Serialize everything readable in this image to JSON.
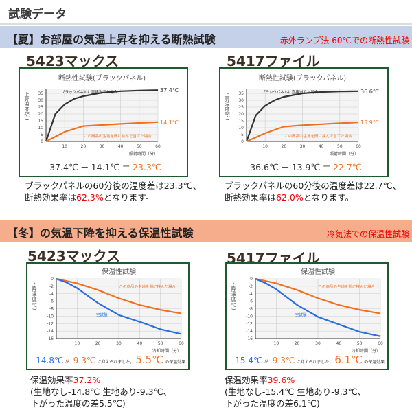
{
  "header": {
    "title": "試験データ"
  },
  "summer": {
    "band_title": "【夏】お部屋の気温上昇を抑える断熱試験",
    "band_note": "赤外ランプ法 60℃での断熱性試験",
    "band_color": "#c5d1e8",
    "products": [
      {
        "name": "5423マックス",
        "formula": {
          "a": "37.4℃",
          "op": "－",
          "b": "14.1℃",
          "eq": "＝",
          "r": "23.3℃"
        },
        "desc_1": "ブラックパネルの60分後の温度差は23.3℃、",
        "desc_2a": "断熱効果率は",
        "desc_2b": "62.3%",
        "desc_2c": "となります。"
      },
      {
        "name": "5417ファイル",
        "formula": {
          "a": "36.6℃",
          "op": "－",
          "b": "13.9℃",
          "eq": "＝",
          "r": "22.7℃"
        },
        "desc_1": "ブラックパネルの60分後の温度差は22.7℃、",
        "desc_2a": "断熱効果率は",
        "desc_2b": "62.0%",
        "desc_2c": "となります。"
      }
    ]
  },
  "winter": {
    "band_title": "【冬】の気温下降を抑える保温性試験",
    "band_note": "冷気法での保温性試験",
    "band_color": "#f6ad8c",
    "products": [
      {
        "name": "5423マックス",
        "formula": {
          "a": "-14.8℃",
          "ga": "が",
          "b": "-9.3℃",
          "mid": "に抑えられました。",
          "r": "5.5℃",
          "tail": "の保温効果"
        },
        "desc_1a": "保温効果率",
        "desc_1b": "37.2%",
        "desc_2": "(生地なし-14.8℃ 生地あり-9.3℃、",
        "desc_3": "下がった温度の差5.5℃)"
      },
      {
        "name": "5417ファイル",
        "formula": {
          "a": "-15.4℃",
          "ga": "が",
          "b": "-9.3℃",
          "mid": "に抑えられました。",
          "r": "6.1℃",
          "tail": "の保温効果"
        },
        "desc_1a": "保温効果率",
        "desc_1b": "39.6%",
        "desc_2": "(生地なし-15.4℃ 生地あり-9.3℃、",
        "desc_3": "下がった温度の差6.1℃)"
      }
    ]
  },
  "chart_data": [
    {
      "type": "line",
      "title": "断熱性試験(ブラックパネル)",
      "ylabel": "上昇温度(℃)",
      "xlabel": "照射時間（分）",
      "x_ticks": [
        10,
        20,
        30,
        40,
        50,
        60
      ],
      "y_ticks": [
        0,
        5,
        10,
        15,
        20,
        25,
        30,
        35
      ],
      "xlim": [
        0,
        60
      ],
      "ylim": [
        0,
        38
      ],
      "grid": true,
      "series": [
        {
          "name": "ブラックパネルに直接当てた場合",
          "color": "#333333",
          "end_label": "37.4℃",
          "x": [
            0,
            5,
            10,
            15,
            20,
            30,
            40,
            50,
            60
          ],
          "y": [
            0,
            20,
            27,
            31,
            33,
            35.5,
            36.6,
            37.1,
            37.4
          ]
        },
        {
          "name": "この商品の生地を間に挟んで当てた場合",
          "color": "#f07020",
          "end_label": "14.1℃",
          "x": [
            0,
            10,
            20,
            30,
            40,
            50,
            60
          ],
          "y": [
            0,
            7,
            11.2,
            12,
            12.8,
            13.5,
            14.1
          ]
        }
      ]
    },
    {
      "type": "line",
      "title": "断熱性試験(ブラックパネル)",
      "ylabel": "上昇温度(℃)",
      "xlabel": "照射時間（分）",
      "x_ticks": [
        10,
        20,
        30,
        40,
        50,
        60
      ],
      "y_ticks": [
        0,
        5,
        10,
        15,
        20,
        25,
        30,
        35
      ],
      "xlim": [
        0,
        60
      ],
      "ylim": [
        0,
        38
      ],
      "grid": true,
      "series": [
        {
          "name": "ブラックパネルに直接当てた場合",
          "color": "#333333",
          "end_label": "36.6℃",
          "x": [
            0,
            5,
            10,
            15,
            20,
            30,
            40,
            50,
            60
          ],
          "y": [
            0,
            19,
            26,
            30,
            32.5,
            35,
            36,
            36.4,
            36.6
          ]
        },
        {
          "name": "この商品の生地を間に挟んで当てた場合",
          "color": "#f07020",
          "end_label": "13.9℃",
          "x": [
            0,
            10,
            20,
            30,
            40,
            50,
            60
          ],
          "y": [
            0,
            6,
            10.8,
            11.8,
            12.6,
            13.3,
            13.9
          ]
        }
      ]
    },
    {
      "type": "line",
      "title": "保温性試験",
      "ylabel": "下降温度(℃)",
      "xlabel": "冷却時間（分）",
      "x_ticks": [
        10,
        20,
        30,
        40,
        50,
        60
      ],
      "y_ticks": [
        0,
        -2,
        -4,
        -6,
        -8,
        -10,
        -12,
        -14,
        -16
      ],
      "xlim": [
        0,
        60
      ],
      "ylim": [
        -16,
        0
      ],
      "grid": true,
      "series": [
        {
          "name": "この商品の生地を間に挟んだ場合",
          "color": "#f07020",
          "x": [
            0,
            10,
            20,
            30,
            40,
            50,
            60
          ],
          "y": [
            0,
            -1.2,
            -3,
            -5.2,
            -7,
            -8.3,
            -9.3
          ]
        },
        {
          "name": "空試験",
          "color": "#2a6ee0",
          "x": [
            0,
            5,
            10,
            20,
            30,
            40,
            50,
            60
          ],
          "y": [
            0,
            -1,
            -2.5,
            -6.5,
            -9.7,
            -11.5,
            -13.5,
            -14.8
          ]
        }
      ]
    },
    {
      "type": "line",
      "title": "保温性試験",
      "ylabel": "下降温度(℃)",
      "xlabel": "冷却時間（分）",
      "x_ticks": [
        10,
        20,
        30,
        40,
        50,
        60
      ],
      "y_ticks": [
        0,
        -2,
        -4,
        -6,
        -8,
        -10,
        -12,
        -14,
        -16
      ],
      "xlim": [
        0,
        60
      ],
      "ylim": [
        -16,
        0
      ],
      "grid": true,
      "series": [
        {
          "name": "この商品の生地を間に挟んだ場合",
          "color": "#f07020",
          "x": [
            0,
            10,
            20,
            30,
            40,
            50,
            60
          ],
          "y": [
            0,
            -1.2,
            -3,
            -5.2,
            -7,
            -8.3,
            -9.3
          ]
        },
        {
          "name": "空試験",
          "color": "#2a6ee0",
          "x": [
            0,
            5,
            10,
            20,
            30,
            40,
            50,
            60
          ],
          "y": [
            0,
            -1.2,
            -2.8,
            -7,
            -10.2,
            -12.2,
            -14.2,
            -15.4
          ]
        }
      ]
    }
  ]
}
